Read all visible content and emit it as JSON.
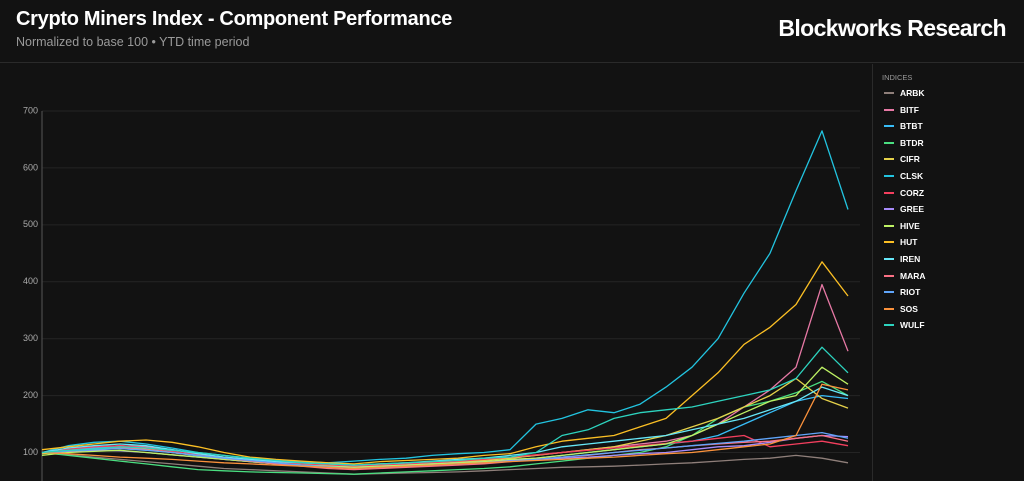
{
  "chart_data": {
    "type": "line",
    "title": "Crypto Miners Index - Component Performance",
    "subtitle": "Normalized to base 100 • YTD time period",
    "source": "Blockworks Research",
    "legend_title": "INDICES",
    "legend": "right",
    "grid": true,
    "ylim": [
      50,
      700
    ],
    "yticks": [
      100,
      200,
      300,
      400,
      500,
      600,
      700
    ],
    "series": [
      {
        "name": "ARBK",
        "color": "#8f7f7a",
        "values": [
          100,
          96,
          92,
          88,
          84,
          80,
          76,
          72,
          70,
          68,
          66,
          64,
          62,
          63,
          64,
          65,
          66,
          68,
          70,
          72,
          74,
          75,
          76,
          78,
          80,
          82,
          85,
          88,
          90,
          95,
          90,
          82
        ]
      },
      {
        "name": "BITF",
        "color": "#e879a6",
        "values": [
          100,
          105,
          108,
          112,
          110,
          105,
          98,
          92,
          88,
          85,
          80,
          78,
          75,
          78,
          80,
          82,
          85,
          88,
          90,
          95,
          100,
          105,
          110,
          115,
          120,
          130,
          150,
          180,
          210,
          250,
          395,
          278
        ]
      },
      {
        "name": "BTBT",
        "color": "#38bdf8",
        "values": [
          100,
          105,
          108,
          110,
          106,
          100,
          94,
          88,
          84,
          80,
          78,
          76,
          74,
          76,
          78,
          80,
          82,
          84,
          86,
          90,
          95,
          100,
          105,
          110,
          115,
          120,
          130,
          150,
          170,
          190,
          200,
          195
        ]
      },
      {
        "name": "BTDR",
        "color": "#4ade80",
        "values": [
          100,
          95,
          90,
          85,
          80,
          75,
          70,
          68,
          66,
          65,
          64,
          63,
          62,
          64,
          66,
          68,
          70,
          72,
          75,
          80,
          85,
          90,
          95,
          100,
          110,
          130,
          160,
          180,
          190,
          205,
          225,
          200
        ]
      },
      {
        "name": "CIFR",
        "color": "#e5d14a",
        "values": [
          98,
          102,
          105,
          108,
          106,
          100,
          95,
          90,
          86,
          82,
          80,
          78,
          76,
          78,
          80,
          82,
          84,
          86,
          90,
          95,
          100,
          105,
          110,
          120,
          130,
          145,
          160,
          180,
          200,
          230,
          195,
          178
        ]
      },
      {
        "name": "CLSK",
        "color": "#22c4e0",
        "values": [
          100,
          112,
          118,
          120,
          115,
          108,
          100,
          95,
          90,
          86,
          84,
          82,
          85,
          88,
          90,
          95,
          98,
          100,
          105,
          150,
          160,
          175,
          170,
          185,
          215,
          250,
          300,
          380,
          450,
          560,
          665,
          527
        ]
      },
      {
        "name": "CORZ",
        "color": "#f43f5e",
        "values": [
          100,
          106,
          110,
          112,
          108,
          102,
          96,
          90,
          86,
          82,
          80,
          78,
          76,
          78,
          80,
          82,
          85,
          88,
          92,
          96,
          100,
          104,
          108,
          112,
          116,
          120,
          125,
          130,
          110,
          115,
          120,
          112
        ]
      },
      {
        "name": "GREE",
        "color": "#a78bfa",
        "values": [
          100,
          102,
          104,
          103,
          100,
          96,
          92,
          88,
          84,
          80,
          78,
          76,
          74,
          76,
          78,
          80,
          82,
          84,
          86,
          88,
          90,
          92,
          95,
          98,
          100,
          105,
          110,
          112,
          118,
          125,
          130,
          128
        ]
      },
      {
        "name": "HIVE",
        "color": "#bef264",
        "values": [
          95,
          100,
          102,
          104,
          100,
          96,
          92,
          88,
          84,
          80,
          78,
          76,
          74,
          76,
          78,
          80,
          82,
          84,
          88,
          90,
          95,
          100,
          105,
          110,
          115,
          130,
          150,
          170,
          190,
          200,
          250,
          220
        ]
      },
      {
        "name": "HUT",
        "color": "#fbbf24",
        "values": [
          105,
          110,
          115,
          120,
          122,
          118,
          110,
          100,
          92,
          88,
          85,
          82,
          80,
          84,
          86,
          88,
          90,
          95,
          98,
          110,
          120,
          125,
          130,
          145,
          160,
          200,
          240,
          290,
          320,
          360,
          435,
          375
        ]
      },
      {
        "name": "IREN",
        "color": "#67e8f9",
        "values": [
          100,
          108,
          112,
          115,
          112,
          105,
          98,
          92,
          88,
          84,
          82,
          80,
          78,
          80,
          82,
          85,
          88,
          90,
          95,
          100,
          110,
          115,
          120,
          125,
          130,
          140,
          150,
          160,
          175,
          190,
          215,
          200
        ]
      },
      {
        "name": "MARA",
        "color": "#fb7185",
        "values": [
          100,
          104,
          106,
          108,
          105,
          100,
          95,
          90,
          85,
          80,
          76,
          72,
          70,
          72,
          74,
          76,
          78,
          80,
          84,
          88,
          92,
          95,
          100,
          105,
          108,
          112,
          115,
          118,
          120,
          125,
          130,
          120
        ]
      },
      {
        "name": "RIOT",
        "color": "#60a5fa",
        "values": [
          100,
          103,
          105,
          107,
          104,
          100,
          95,
          90,
          86,
          82,
          78,
          75,
          72,
          74,
          76,
          78,
          80,
          82,
          85,
          88,
          92,
          96,
          100,
          104,
          108,
          112,
          116,
          120,
          125,
          130,
          135,
          125
        ]
      },
      {
        "name": "SOS",
        "color": "#fb923c",
        "values": [
          100,
          98,
          95,
          92,
          90,
          88,
          85,
          82,
          80,
          78,
          76,
          74,
          72,
          74,
          76,
          78,
          80,
          82,
          84,
          86,
          88,
          90,
          92,
          95,
          98,
          100,
          105,
          110,
          115,
          130,
          220,
          210
        ]
      },
      {
        "name": "WULF",
        "color": "#2dd4bf",
        "values": [
          100,
          104,
          106,
          110,
          108,
          104,
          100,
          95,
          90,
          86,
          82,
          80,
          78,
          80,
          82,
          84,
          86,
          90,
          92,
          100,
          130,
          140,
          160,
          170,
          175,
          180,
          190,
          200,
          210,
          230,
          285,
          240
        ]
      }
    ]
  }
}
